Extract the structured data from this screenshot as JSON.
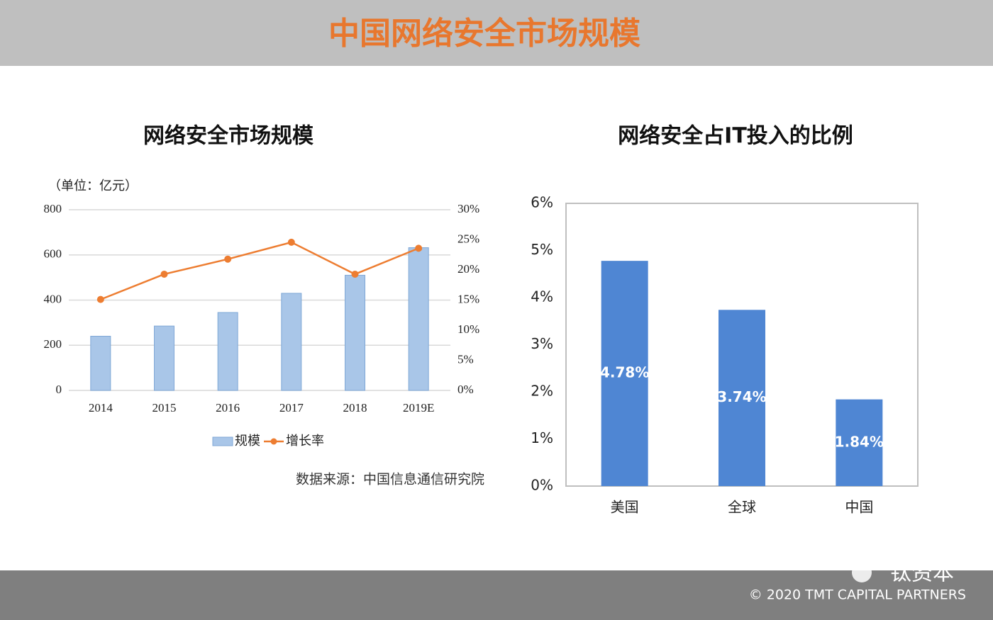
{
  "header": {
    "title": "中国网络安全市场规模"
  },
  "footer": {
    "watermark": "钛资本",
    "copyright": "© 2020 TMT CAPITAL PARTNERS"
  },
  "chart_data": [
    {
      "type": "bar",
      "title": "网络安全市场规模",
      "y_label": "（单位：亿元）",
      "annotation": "数据来源：中国信息通信研究院",
      "categories": [
        "2014",
        "2015",
        "2016",
        "2017",
        "2018",
        "2019E"
      ],
      "series": [
        {
          "name": "规模",
          "type": "bar",
          "color": "#a9c6e8",
          "values": [
            240,
            285,
            345,
            430,
            510,
            632
          ]
        },
        {
          "name": "增长率",
          "type": "line",
          "axis": "y2",
          "color": "#ed7d31",
          "values": [
            15.1,
            19.3,
            21.8,
            24.6,
            19.3,
            23.6
          ]
        }
      ],
      "ylim": [
        0,
        800
      ],
      "yticks": [
        0,
        200,
        400,
        600,
        800
      ],
      "y2lim": [
        0,
        30
      ],
      "y2ticks": [
        {
          "value": 0,
          "label": "0%"
        },
        {
          "value": 5,
          "label": "5%"
        },
        {
          "value": 10,
          "label": "10%"
        },
        {
          "value": 15,
          "label": "15%"
        },
        {
          "value": 20,
          "label": "20%"
        },
        {
          "value": 25,
          "label": "25%"
        },
        {
          "value": 30,
          "label": "30%"
        }
      ],
      "grid": true,
      "legend": "bottom"
    },
    {
      "type": "bar",
      "title": "网络安全占IT投入的比例",
      "categories": [
        "美国",
        "全球",
        "中国"
      ],
      "values": [
        4.78,
        3.74,
        1.84
      ],
      "value_labels": [
        "4.78%",
        "3.74%",
        "1.84%"
      ],
      "color": "#4f86d3",
      "ylim": [
        0,
        6
      ],
      "yticks": [
        {
          "value": 0,
          "label": "0%"
        },
        {
          "value": 1,
          "label": "1%"
        },
        {
          "value": 2,
          "label": "2%"
        },
        {
          "value": 3,
          "label": "3%"
        },
        {
          "value": 4,
          "label": "4%"
        },
        {
          "value": 5,
          "label": "5%"
        },
        {
          "value": 6,
          "label": "6%"
        }
      ],
      "grid": false
    }
  ]
}
